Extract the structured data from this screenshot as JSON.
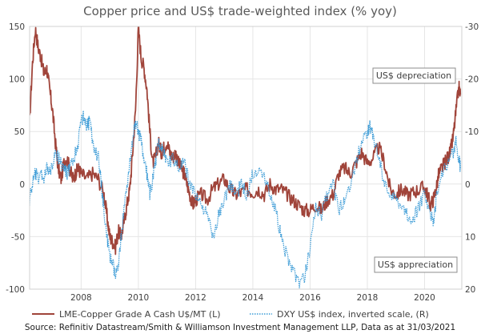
{
  "chart_data": {
    "type": "line",
    "title": "Copper price and US$ trade-weighted index (% yoy)",
    "xlabel": "",
    "ylabel_left": "",
    "ylabel_right": "",
    "x_ticks": [
      2008,
      2010,
      2012,
      2014,
      2016,
      2018,
      2020
    ],
    "xlim": [
      2006.2,
      2021.3
    ],
    "y_left": {
      "lim": [
        -100,
        150
      ],
      "ticks": [
        150,
        100,
        50,
        0,
        -50,
        -100
      ],
      "tick_labels": [
        "150",
        "100",
        "50",
        "0",
        "-50",
        "-100"
      ]
    },
    "y_right": {
      "lim": [
        20,
        -30
      ],
      "inverted": true,
      "ticks": [
        -30,
        -20,
        -10,
        0,
        10,
        20
      ],
      "tick_labels": [
        "-30",
        "-20",
        "-10",
        "0",
        "10",
        "20"
      ]
    },
    "grid": true,
    "legend_position": "bottom",
    "series": [
      {
        "name": "LME-Copper Grade A Cash U$/MT (L)",
        "axis": "left",
        "color": "#A0443A",
        "style": "solid",
        "points": [
          [
            2006.2,
            60
          ],
          [
            2006.3,
            115
          ],
          [
            2006.4,
            148
          ],
          [
            2006.5,
            130
          ],
          [
            2006.6,
            120
          ],
          [
            2006.7,
            105
          ],
          [
            2006.8,
            110
          ],
          [
            2006.9,
            90
          ],
          [
            2007.0,
            70
          ],
          [
            2007.1,
            40
          ],
          [
            2007.2,
            15
          ],
          [
            2007.3,
            5
          ],
          [
            2007.4,
            20
          ],
          [
            2007.5,
            25
          ],
          [
            2007.6,
            15
          ],
          [
            2007.7,
            5
          ],
          [
            2007.8,
            10
          ],
          [
            2007.9,
            15
          ],
          [
            2008.0,
            10
          ],
          [
            2008.2,
            5
          ],
          [
            2008.4,
            10
          ],
          [
            2008.6,
            5
          ],
          [
            2008.8,
            -10
          ],
          [
            2008.9,
            -30
          ],
          [
            2009.0,
            -50
          ],
          [
            2009.1,
            -55
          ],
          [
            2009.2,
            -60
          ],
          [
            2009.3,
            -45
          ],
          [
            2009.4,
            -50
          ],
          [
            2009.5,
            -35
          ],
          [
            2009.6,
            -20
          ],
          [
            2009.7,
            -5
          ],
          [
            2009.8,
            30
          ],
          [
            2009.9,
            70
          ],
          [
            2010.0,
            148
          ],
          [
            2010.1,
            120
          ],
          [
            2010.2,
            110
          ],
          [
            2010.3,
            90
          ],
          [
            2010.4,
            50
          ],
          [
            2010.5,
            20
          ],
          [
            2010.6,
            25
          ],
          [
            2010.7,
            40
          ],
          [
            2010.8,
            30
          ],
          [
            2010.9,
            35
          ],
          [
            2011.0,
            40
          ],
          [
            2011.1,
            30
          ],
          [
            2011.2,
            25
          ],
          [
            2011.3,
            30
          ],
          [
            2011.4,
            20
          ],
          [
            2011.5,
            15
          ],
          [
            2011.6,
            10
          ],
          [
            2011.7,
            0
          ],
          [
            2011.8,
            -10
          ],
          [
            2011.9,
            -20
          ],
          [
            2012.0,
            -15
          ],
          [
            2012.2,
            -10
          ],
          [
            2012.4,
            -15
          ],
          [
            2012.6,
            -5
          ],
          [
            2012.8,
            0
          ],
          [
            2013.0,
            5
          ],
          [
            2013.2,
            -5
          ],
          [
            2013.4,
            -10
          ],
          [
            2013.6,
            -8
          ],
          [
            2013.8,
            -5
          ],
          [
            2014.0,
            -8
          ],
          [
            2014.2,
            -5
          ],
          [
            2014.4,
            -10
          ],
          [
            2014.6,
            0
          ],
          [
            2014.8,
            -5
          ],
          [
            2015.0,
            -5
          ],
          [
            2015.2,
            -10
          ],
          [
            2015.4,
            -15
          ],
          [
            2015.6,
            -20
          ],
          [
            2015.8,
            -25
          ],
          [
            2016.0,
            -25
          ],
          [
            2016.2,
            -20
          ],
          [
            2016.4,
            -25
          ],
          [
            2016.6,
            -15
          ],
          [
            2016.8,
            -10
          ],
          [
            2017.0,
            10
          ],
          [
            2017.2,
            15
          ],
          [
            2017.4,
            10
          ],
          [
            2017.6,
            20
          ],
          [
            2017.8,
            30
          ],
          [
            2018.0,
            20
          ],
          [
            2018.2,
            25
          ],
          [
            2018.4,
            35
          ],
          [
            2018.6,
            20
          ],
          [
            2018.8,
            -5
          ],
          [
            2019.0,
            -10
          ],
          [
            2019.2,
            -5
          ],
          [
            2019.4,
            -10
          ],
          [
            2019.6,
            -8
          ],
          [
            2019.8,
            -5
          ],
          [
            2020.0,
            -3
          ],
          [
            2020.1,
            -10
          ],
          [
            2020.2,
            -20
          ],
          [
            2020.3,
            -15
          ],
          [
            2020.4,
            -5
          ],
          [
            2020.5,
            10
          ],
          [
            2020.6,
            15
          ],
          [
            2020.7,
            20
          ],
          [
            2020.8,
            25
          ],
          [
            2020.9,
            30
          ],
          [
            2021.0,
            45
          ],
          [
            2021.1,
            70
          ],
          [
            2021.2,
            92
          ],
          [
            2021.25,
            85
          ]
        ]
      },
      {
        "name": "DXY US$ index, inverted scale, (R)",
        "axis": "right",
        "color": "#3B9BD6",
        "style": "dotted",
        "points": [
          [
            2006.2,
            3
          ],
          [
            2006.3,
            0
          ],
          [
            2006.4,
            -2
          ],
          [
            2006.5,
            -1
          ],
          [
            2006.6,
            -2
          ],
          [
            2006.7,
            -1
          ],
          [
            2006.8,
            -3
          ],
          [
            2006.9,
            -2
          ],
          [
            2007.0,
            -4
          ],
          [
            2007.1,
            -6
          ],
          [
            2007.2,
            -5
          ],
          [
            2007.3,
            -4
          ],
          [
            2007.4,
            -3
          ],
          [
            2007.5,
            -2
          ],
          [
            2007.6,
            -3
          ],
          [
            2007.7,
            -4
          ],
          [
            2007.8,
            -6
          ],
          [
            2007.9,
            -8
          ],
          [
            2008.0,
            -12
          ],
          [
            2008.1,
            -13
          ],
          [
            2008.2,
            -11
          ],
          [
            2008.3,
            -12
          ],
          [
            2008.4,
            -8
          ],
          [
            2008.6,
            -5
          ],
          [
            2008.7,
            0
          ],
          [
            2008.8,
            5
          ],
          [
            2008.9,
            10
          ],
          [
            2009.0,
            14
          ],
          [
            2009.1,
            15
          ],
          [
            2009.2,
            18
          ],
          [
            2009.3,
            15
          ],
          [
            2009.4,
            10
          ],
          [
            2009.5,
            5
          ],
          [
            2009.6,
            0
          ],
          [
            2009.7,
            -4
          ],
          [
            2009.8,
            -8
          ],
          [
            2009.9,
            -12
          ],
          [
            2010.0,
            -10
          ],
          [
            2010.1,
            -8
          ],
          [
            2010.2,
            -4
          ],
          [
            2010.3,
            -2
          ],
          [
            2010.4,
            2
          ],
          [
            2010.5,
            -1
          ],
          [
            2010.6,
            -4
          ],
          [
            2010.7,
            -8
          ],
          [
            2010.8,
            -7
          ],
          [
            2010.9,
            -6
          ],
          [
            2011.0,
            -4
          ],
          [
            2011.2,
            -5
          ],
          [
            2011.4,
            -3
          ],
          [
            2011.6,
            -4
          ],
          [
            2011.8,
            0
          ],
          [
            2012.0,
            2
          ],
          [
            2012.2,
            4
          ],
          [
            2012.4,
            6
          ],
          [
            2012.6,
            10
          ],
          [
            2012.8,
            6
          ],
          [
            2013.0,
            3
          ],
          [
            2013.2,
            0
          ],
          [
            2013.4,
            2
          ],
          [
            2013.6,
            0
          ],
          [
            2013.8,
            2
          ],
          [
            2014.0,
            -2
          ],
          [
            2014.2,
            -3
          ],
          [
            2014.4,
            -2
          ],
          [
            2014.6,
            2
          ],
          [
            2014.8,
            5
          ],
          [
            2015.0,
            10
          ],
          [
            2015.2,
            14
          ],
          [
            2015.4,
            16
          ],
          [
            2015.6,
            19
          ],
          [
            2015.8,
            18
          ],
          [
            2016.0,
            12
          ],
          [
            2016.2,
            4
          ],
          [
            2016.4,
            6
          ],
          [
            2016.6,
            2
          ],
          [
            2016.8,
            0
          ],
          [
            2017.0,
            5
          ],
          [
            2017.2,
            3
          ],
          [
            2017.4,
            0
          ],
          [
            2017.6,
            -4
          ],
          [
            2017.8,
            -8
          ],
          [
            2018.0,
            -10
          ],
          [
            2018.1,
            -11
          ],
          [
            2018.2,
            -9
          ],
          [
            2018.4,
            -5
          ],
          [
            2018.6,
            0
          ],
          [
            2018.8,
            2
          ],
          [
            2019.0,
            3
          ],
          [
            2019.2,
            4
          ],
          [
            2019.4,
            6
          ],
          [
            2019.6,
            7
          ],
          [
            2019.8,
            4
          ],
          [
            2020.0,
            2
          ],
          [
            2020.2,
            5
          ],
          [
            2020.3,
            8
          ],
          [
            2020.4,
            3
          ],
          [
            2020.6,
            -2
          ],
          [
            2020.8,
            -4
          ],
          [
            2021.0,
            -6
          ],
          [
            2021.1,
            -8
          ],
          [
            2021.2,
            -5
          ],
          [
            2021.25,
            -3
          ]
        ]
      }
    ],
    "annotations": [
      {
        "text": "US$ depreciation"
      },
      {
        "text": "US$ appreciation"
      }
    ],
    "source": "Source: Refinitiv Datastream/Smith & Williamson Investment Management LLP, Data as at 31/03/2021"
  },
  "colors": {
    "copper": "#A0443A",
    "dxy": "#3B9BD6",
    "grid": "#e6e6e6",
    "zero_line": "#bfbfbf"
  }
}
